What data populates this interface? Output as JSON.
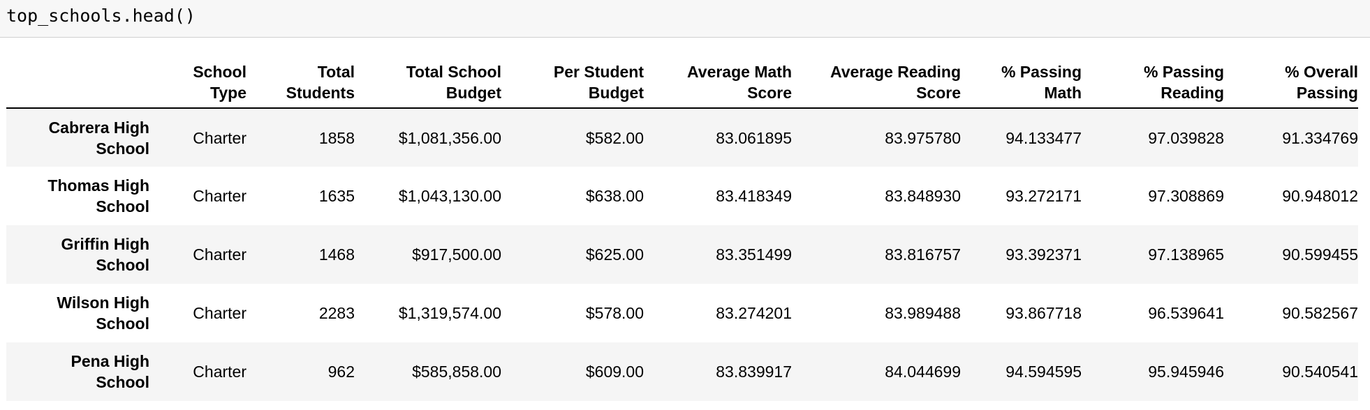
{
  "cell": {
    "code": "top_schools.head()"
  },
  "table": {
    "index_header": "",
    "columns": [
      [
        "School",
        "Type"
      ],
      [
        "Total",
        "Students"
      ],
      [
        "Total School",
        "Budget"
      ],
      [
        "Per Student",
        "Budget"
      ],
      [
        "Average Math",
        "Score"
      ],
      [
        "Average Reading",
        "Score"
      ],
      [
        "% Passing",
        "Math"
      ],
      [
        "% Passing",
        "Reading"
      ],
      [
        "% Overall",
        "Passing"
      ]
    ],
    "rows": [
      {
        "index": [
          "Cabrera High",
          "School"
        ],
        "cells": [
          "Charter",
          "1858",
          "$1,081,356.00",
          "$582.00",
          "83.061895",
          "83.975780",
          "94.133477",
          "97.039828",
          "91.334769"
        ]
      },
      {
        "index": [
          "Thomas High",
          "School"
        ],
        "cells": [
          "Charter",
          "1635",
          "$1,043,130.00",
          "$638.00",
          "83.418349",
          "83.848930",
          "93.272171",
          "97.308869",
          "90.948012"
        ]
      },
      {
        "index": [
          "Griffin High",
          "School"
        ],
        "cells": [
          "Charter",
          "1468",
          "$917,500.00",
          "$625.00",
          "83.351499",
          "83.816757",
          "93.392371",
          "97.138965",
          "90.599455"
        ]
      },
      {
        "index": [
          "Wilson High",
          "School"
        ],
        "cells": [
          "Charter",
          "2283",
          "$1,319,574.00",
          "$578.00",
          "83.274201",
          "83.989488",
          "93.867718",
          "96.539641",
          "90.582567"
        ]
      },
      {
        "index": [
          "Pena High",
          "School"
        ],
        "cells": [
          "Charter",
          "962",
          "$585,858.00",
          "$609.00",
          "83.839917",
          "84.044699",
          "94.594595",
          "95.945946",
          "90.540541"
        ]
      }
    ]
  }
}
